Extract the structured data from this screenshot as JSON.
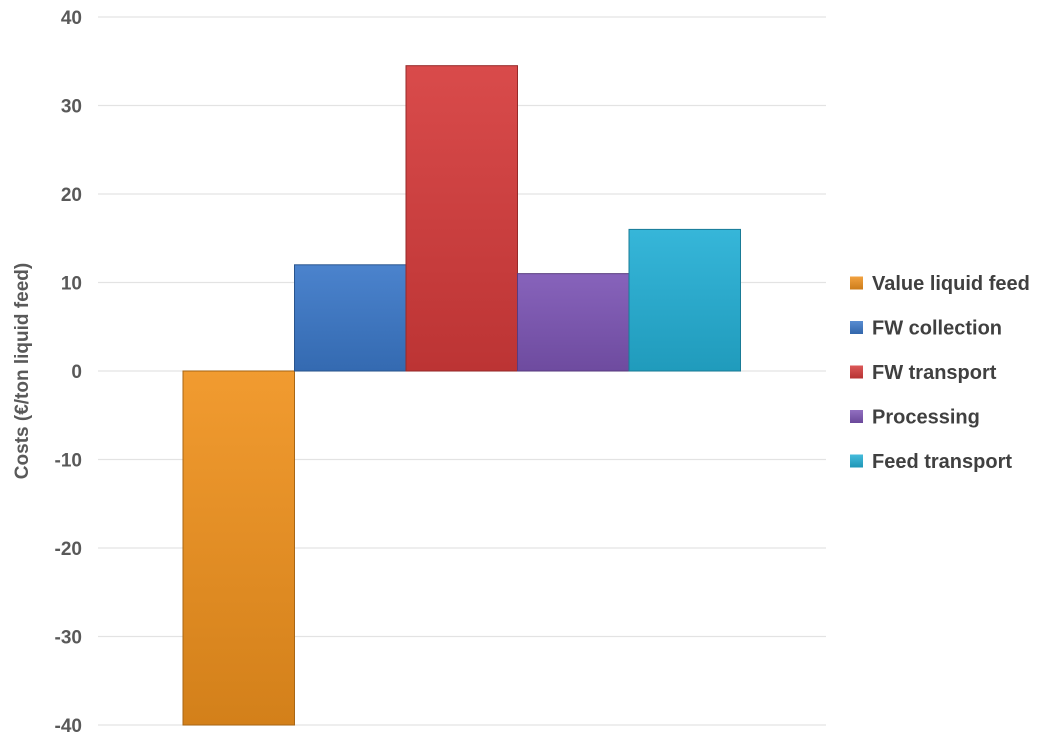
{
  "chart_data": {
    "type": "bar",
    "title": "",
    "xlabel": "",
    "ylabel": "Costs (€/ton liquid feed)",
    "ylim": [
      -40,
      40
    ],
    "yticks": [
      40,
      30,
      20,
      10,
      0,
      -10,
      -20,
      -30,
      -40
    ],
    "ytick_labels": [
      "40",
      "30",
      "20",
      "10",
      "0",
      "-10",
      "-20",
      "-30",
      "-40"
    ],
    "grid": true,
    "legend_position": "right",
    "series": [
      {
        "name": "Value liquid feed",
        "value": -40,
        "color": "#f0921e"
      },
      {
        "name": "FW collection",
        "value": 12,
        "color": "#3b78c9"
      },
      {
        "name": "FW transport",
        "value": 34.5,
        "color": "#d63b3b"
      },
      {
        "name": "Processing",
        "value": 11,
        "color": "#7d55b5"
      },
      {
        "name": "Feed transport",
        "value": 16,
        "color": "#24b0d6"
      }
    ]
  }
}
